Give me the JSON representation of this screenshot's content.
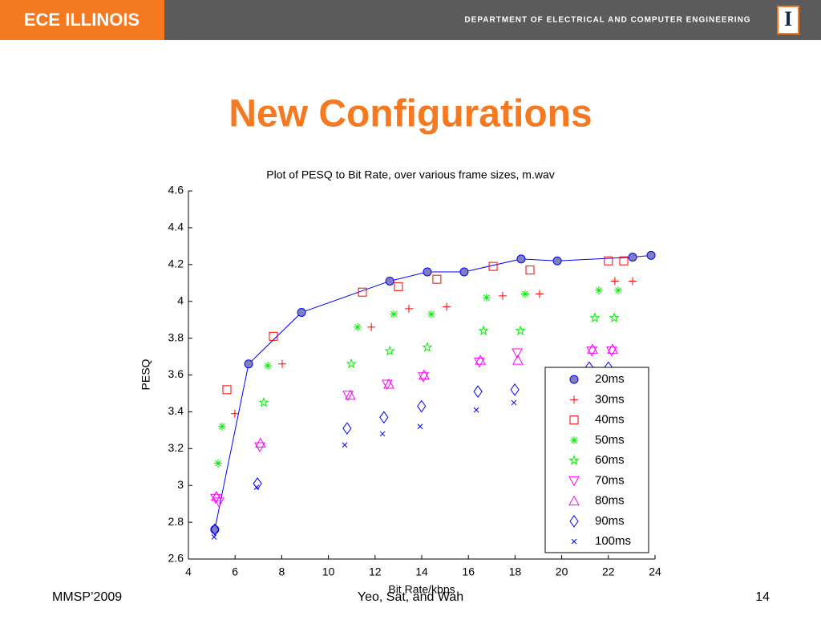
{
  "header": {
    "logo": "ECE ILLINOIS",
    "department": "DEPARTMENT OF ELECTRICAL AND COMPUTER ENGINEERING",
    "emblem": "I"
  },
  "slide_title": "New Configurations",
  "footer": {
    "left": "MMSP’2009",
    "center": "Yeo, Sat, and Wah",
    "right": "14"
  },
  "chart_data": {
    "type": "scatter",
    "title": "Plot of PESQ to Bit Rate, over various frame sizes, m.wav",
    "x_label": "Bit Rate/kbps",
    "y_label": "PESQ",
    "xlim": [
      4,
      24
    ],
    "ylim": [
      2.6,
      4.6
    ],
    "xticks": [
      4,
      6,
      8,
      10,
      12,
      14,
      16,
      18,
      20,
      22,
      24
    ],
    "yticks": [
      2.6,
      2.8,
      3,
      3.2,
      3.4,
      3.6,
      3.8,
      4,
      4.2,
      4.4,
      4.6
    ],
    "legend": "southeast",
    "series": [
      {
        "name": "20ms",
        "color": "#0000ff",
        "fill": "#7f7fbf",
        "marker": "circle",
        "line": true,
        "x": [
          5.13,
          6.58,
          8.85,
          12.63,
          14.24,
          15.82,
          18.26,
          19.81,
          23.04,
          23.83
        ],
        "values": [
          2.76,
          3.66,
          3.94,
          4.11,
          4.16,
          4.16,
          4.23,
          4.22,
          4.24,
          4.25
        ]
      },
      {
        "name": "30ms",
        "color": "#ff0000",
        "marker": "plus",
        "x": [
          5.99,
          8.02,
          11.84,
          13.45,
          15.07,
          17.47,
          19.05,
          22.28,
          23.04
        ],
        "values": [
          3.39,
          3.66,
          3.86,
          3.96,
          3.97,
          4.03,
          4.04,
          4.11,
          4.11
        ]
      },
      {
        "name": "40ms",
        "color": "#ff0000",
        "marker": "square",
        "x": [
          5.65,
          7.64,
          11.46,
          13.0,
          14.65,
          17.06,
          18.64,
          22.0,
          22.66
        ],
        "values": [
          3.52,
          3.81,
          4.05,
          4.08,
          4.12,
          4.19,
          4.17,
          4.22,
          4.22
        ]
      },
      {
        "name": "50ms",
        "color": "#00ee00",
        "marker": "asterisk",
        "x": [
          5.27,
          5.44,
          7.4,
          11.25,
          12.8,
          14.41,
          16.78,
          18.43,
          21.59,
          22.42
        ],
        "values": [
          3.12,
          3.32,
          3.65,
          3.86,
          3.93,
          3.93,
          4.02,
          4.04,
          4.06,
          4.06
        ]
      },
      {
        "name": "60ms",
        "color": "#00ee00",
        "marker": "star",
        "x": [
          7.23,
          10.98,
          12.63,
          14.24,
          16.65,
          18.23,
          21.42,
          22.25
        ],
        "values": [
          3.45,
          3.66,
          3.73,
          3.75,
          3.84,
          3.84,
          3.91,
          3.91
        ]
      },
      {
        "name": "70ms",
        "color": "#ff00ff",
        "marker": "triangle-down",
        "x": [
          5.17,
          5.31,
          7.06,
          10.84,
          12.52,
          14.07,
          16.47,
          18.09,
          21.29,
          22.14
        ],
        "values": [
          2.93,
          2.91,
          3.21,
          3.49,
          3.55,
          3.59,
          3.67,
          3.72,
          3.73,
          3.73
        ]
      },
      {
        "name": "80ms",
        "color": "#ff00ff",
        "marker": "triangle-up",
        "x": [
          5.2,
          7.09,
          10.94,
          12.59,
          14.1,
          16.51,
          18.12,
          21.32,
          22.18
        ],
        "values": [
          2.94,
          3.23,
          3.49,
          3.55,
          3.6,
          3.68,
          3.68,
          3.74,
          3.74
        ]
      },
      {
        "name": "90ms",
        "color": "#0000ff",
        "marker": "diamond",
        "x": [
          5.13,
          6.96,
          10.8,
          12.38,
          13.99,
          16.41,
          17.99,
          21.18,
          22.0
        ],
        "values": [
          2.76,
          3.01,
          3.31,
          3.37,
          3.43,
          3.51,
          3.52,
          3.64,
          3.64
        ]
      },
      {
        "name": "100ms",
        "color": "#0000ff",
        "marker": "x",
        "x": [
          5.1,
          6.92,
          10.7,
          12.32,
          13.93,
          16.34,
          17.95
        ],
        "values": [
          2.72,
          2.99,
          3.22,
          3.28,
          3.32,
          3.41,
          3.45
        ]
      }
    ]
  }
}
